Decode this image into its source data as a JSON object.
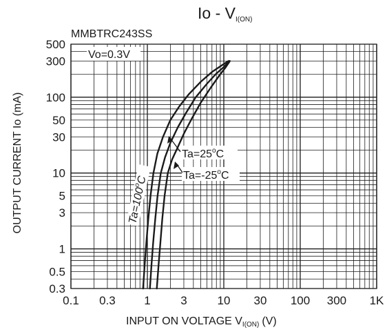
{
  "chart_data": {
    "type": "line",
    "title": "Io - V",
    "title_sub": "I(ON)",
    "part_number": "MMBTRC243SS",
    "condition_label": "Vo=0.3V",
    "xlabel_main": "INPUT ON VOLTAGE V",
    "xlabel_sub": "I(ON)",
    "xlabel_unit": "(V)",
    "ylabel": "OUTPUT CURRENT Io (mA)",
    "x_scale": "log",
    "y_scale": "log",
    "xlim": [
      0.1,
      1000
    ],
    "ylim": [
      0.3,
      500
    ],
    "grid": true,
    "x_ticks": [
      {
        "v": 0.1,
        "label": "0.1"
      },
      {
        "v": 0.3,
        "label": "0.3"
      },
      {
        "v": 1,
        "label": "1"
      },
      {
        "v": 3,
        "label": "3"
      },
      {
        "v": 10,
        "label": "10"
      },
      {
        "v": 30,
        "label": "30"
      },
      {
        "v": 100,
        "label": "100"
      },
      {
        "v": 300,
        "label": "300"
      },
      {
        "v": 1000,
        "label": "1K"
      }
    ],
    "y_ticks": [
      {
        "v": 0.3,
        "label": "0.3"
      },
      {
        "v": 0.5,
        "label": "0.5"
      },
      {
        "v": 1,
        "label": "1"
      },
      {
        "v": 3,
        "label": "3"
      },
      {
        "v": 5,
        "label": "5"
      },
      {
        "v": 10,
        "label": "10"
      },
      {
        "v": 30,
        "label": "30"
      },
      {
        "v": 50,
        "label": "50"
      },
      {
        "v": 100,
        "label": "100"
      },
      {
        "v": 300,
        "label": "300"
      },
      {
        "v": 500,
        "label": "500"
      }
    ],
    "series": [
      {
        "name": "Ta=100°C",
        "label_main": "Ta=100",
        "label_unit": "C",
        "x": [
          0.88,
          0.92,
          0.97,
          1.03,
          1.1,
          1.2,
          1.35,
          1.6,
          2.0,
          2.6,
          3.5,
          5.0,
          7.0,
          9.0,
          11.5
        ],
        "y": [
          0.3,
          0.6,
          1.2,
          2.5,
          5,
          10,
          18,
          30,
          50,
          75,
          110,
          160,
          215,
          255,
          300
        ]
      },
      {
        "name": "Ta=25°C",
        "label_main": "Ta=25",
        "label_unit": "C",
        "x": [
          1.08,
          1.13,
          1.19,
          1.27,
          1.36,
          1.5,
          1.7,
          2.0,
          2.5,
          3.2,
          4.3,
          6.0,
          8.0,
          10.0,
          11.8
        ],
        "y": [
          0.3,
          0.6,
          1.2,
          2.5,
          5,
          10,
          16,
          25,
          40,
          62,
          100,
          150,
          205,
          250,
          300
        ]
      },
      {
        "name": "Ta=-25°C",
        "label_main": "Ta=-25",
        "label_unit": "C",
        "x": [
          1.33,
          1.4,
          1.48,
          1.57,
          1.68,
          1.85,
          2.1,
          2.5,
          3.0,
          3.8,
          5.0,
          6.8,
          8.8,
          10.5,
          12.0
        ],
        "y": [
          0.3,
          0.6,
          1.2,
          2.5,
          5,
          10,
          15,
          22,
          33,
          52,
          85,
          135,
          195,
          245,
          300
        ]
      }
    ]
  }
}
